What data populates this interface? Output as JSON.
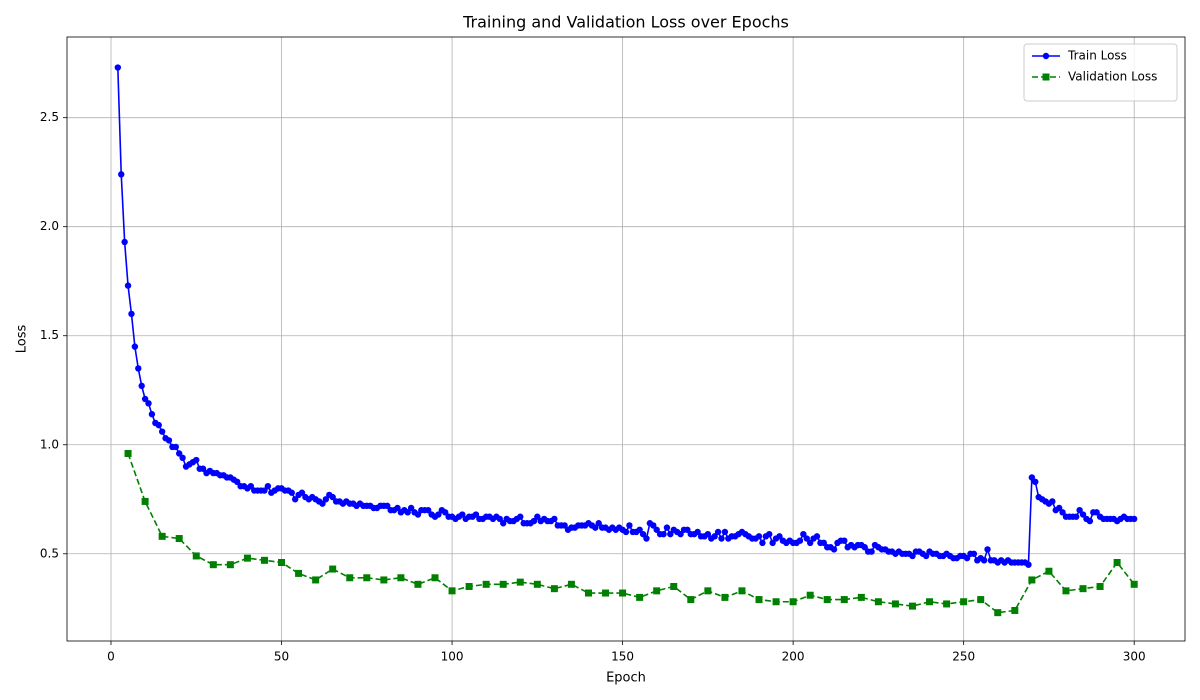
{
  "chart_data": {
    "type": "line",
    "title": "Training and Validation Loss over Epochs",
    "x_label": "Epoch",
    "y_label": "Loss",
    "xlim": [
      -12.9,
      314.9
    ],
    "ylim": [
      0.1,
      2.87
    ],
    "xticks": [
      0,
      50,
      100,
      150,
      200,
      250,
      300
    ],
    "yticks": [
      0.5,
      {
        "value": 1,
        "label": "1.0"
      },
      1.5,
      {
        "value": 2,
        "label": "2.0"
      },
      2.5
    ],
    "grid": true,
    "legend": "upper right",
    "series": [
      {
        "name": "Train Loss",
        "color": "#0000ff",
        "marker": "circle",
        "linestyle": "solid",
        "x": [
          2,
          3,
          4,
          5,
          6,
          7,
          8,
          9,
          10,
          11,
          12,
          13,
          14,
          15,
          16,
          17,
          18,
          19,
          20,
          21,
          22,
          23,
          24,
          25,
          26,
          27,
          28,
          29,
          30,
          31,
          32,
          33,
          34,
          35,
          36,
          37,
          38,
          39,
          40,
          41,
          42,
          43,
          44,
          45,
          46,
          47,
          48,
          49,
          50,
          51,
          52,
          53,
          54,
          55,
          56,
          57,
          58,
          59,
          60,
          61,
          62,
          63,
          64,
          65,
          66,
          67,
          68,
          69,
          70,
          71,
          72,
          73,
          74,
          75,
          76,
          77,
          78,
          79,
          80,
          81,
          82,
          83,
          84,
          85,
          86,
          87,
          88,
          89,
          90,
          91,
          92,
          93,
          94,
          95,
          96,
          97,
          98,
          99,
          100,
          101,
          102,
          103,
          104,
          105,
          106,
          107,
          108,
          109,
          110,
          111,
          112,
          113,
          114,
          115,
          116,
          117,
          118,
          119,
          120,
          121,
          122,
          123,
          124,
          125,
          126,
          127,
          128,
          129,
          130,
          131,
          132,
          133,
          134,
          135,
          136,
          137,
          138,
          139,
          140,
          141,
          142,
          143,
          144,
          145,
          146,
          147,
          148,
          149,
          150,
          151,
          152,
          153,
          154,
          155,
          156,
          157,
          158,
          159,
          160,
          161,
          162,
          163,
          164,
          165,
          166,
          167,
          168,
          169,
          170,
          171,
          172,
          173,
          174,
          175,
          176,
          177,
          178,
          179,
          180,
          181,
          182,
          183,
          184,
          185,
          186,
          187,
          188,
          189,
          190,
          191,
          192,
          193,
          194,
          195,
          196,
          197,
          198,
          199,
          200,
          201,
          202,
          203,
          204,
          205,
          206,
          207,
          208,
          209,
          210,
          211,
          212,
          213,
          214,
          215,
          216,
          217,
          218,
          219,
          220,
          221,
          222,
          223,
          224,
          225,
          226,
          227,
          228,
          229,
          230,
          231,
          232,
          233,
          234,
          235,
          236,
          237,
          238,
          239,
          240,
          241,
          242,
          243,
          244,
          245,
          246,
          247,
          248,
          249,
          250,
          251,
          252,
          253,
          254,
          255,
          256,
          257,
          258,
          259,
          260,
          261,
          262,
          263,
          264,
          265,
          266,
          267,
          268,
          269,
          270,
          271,
          272,
          273,
          274,
          275,
          276,
          277,
          278,
          279,
          280,
          281,
          282,
          283,
          284,
          285,
          286,
          287,
          288,
          289,
          290,
          291,
          292,
          293,
          294,
          295,
          296,
          297,
          298,
          299,
          300
        ],
        "values": [
          2.73,
          2.24,
          1.93,
          1.73,
          1.6,
          1.45,
          1.35,
          1.27,
          1.21,
          1.19,
          1.14,
          1.1,
          1.09,
          1.06,
          1.03,
          1.02,
          0.99,
          0.99,
          0.96,
          0.94,
          0.9,
          0.91,
          0.92,
          0.93,
          0.89,
          0.89,
          0.87,
          0.88,
          0.87,
          0.87,
          0.86,
          0.86,
          0.85,
          0.85,
          0.84,
          0.83,
          0.81,
          0.81,
          0.8,
          0.81,
          0.79,
          0.79,
          0.79,
          0.79,
          0.81,
          0.78,
          0.79,
          0.8,
          0.8,
          0.79,
          0.79,
          0.78,
          0.75,
          0.77,
          0.78,
          0.76,
          0.75,
          0.76,
          0.75,
          0.74,
          0.73,
          0.75,
          0.77,
          0.76,
          0.74,
          0.74,
          0.73,
          0.74,
          0.73,
          0.73,
          0.72,
          0.73,
          0.72,
          0.72,
          0.72,
          0.71,
          0.71,
          0.72,
          0.72,
          0.72,
          0.7,
          0.7,
          0.71,
          0.69,
          0.7,
          0.69,
          0.71,
          0.69,
          0.68,
          0.7,
          0.7,
          0.7,
          0.68,
          0.67,
          0.68,
          0.7,
          0.69,
          0.67,
          0.67,
          0.66,
          0.67,
          0.68,
          0.66,
          0.67,
          0.67,
          0.68,
          0.66,
          0.66,
          0.67,
          0.67,
          0.66,
          0.67,
          0.66,
          0.64,
          0.66,
          0.65,
          0.65,
          0.66,
          0.67,
          0.64,
          0.64,
          0.64,
          0.65,
          0.67,
          0.65,
          0.66,
          0.65,
          0.65,
          0.66,
          0.63,
          0.63,
          0.63,
          0.61,
          0.62,
          0.62,
          0.63,
          0.63,
          0.63,
          0.64,
          0.63,
          0.62,
          0.64,
          0.62,
          0.62,
          0.61,
          0.62,
          0.61,
          0.62,
          0.61,
          0.6,
          0.63,
          0.6,
          0.6,
          0.61,
          0.59,
          0.57,
          0.64,
          0.63,
          0.61,
          0.59,
          0.59,
          0.62,
          0.59,
          0.61,
          0.6,
          0.59,
          0.61,
          0.61,
          0.59,
          0.59,
          0.6,
          0.58,
          0.58,
          0.59,
          0.57,
          0.58,
          0.6,
          0.57,
          0.6,
          0.57,
          0.58,
          0.58,
          0.59,
          0.6,
          0.59,
          0.58,
          0.57,
          0.57,
          0.58,
          0.55,
          0.58,
          0.59,
          0.55,
          0.57,
          0.58,
          0.56,
          0.55,
          0.56,
          0.55,
          0.55,
          0.56,
          0.59,
          0.57,
          0.55,
          0.57,
          0.58,
          0.55,
          0.55,
          0.53,
          0.53,
          0.52,
          0.55,
          0.56,
          0.56,
          0.53,
          0.54,
          0.53,
          0.54,
          0.54,
          0.53,
          0.51,
          0.51,
          0.54,
          0.53,
          0.52,
          0.52,
          0.51,
          0.51,
          0.5,
          0.51,
          0.5,
          0.5,
          0.5,
          0.49,
          0.51,
          0.51,
          0.5,
          0.49,
          0.51,
          0.5,
          0.5,
          0.49,
          0.49,
          0.5,
          0.49,
          0.48,
          0.48,
          0.49,
          0.49,
          0.48,
          0.5,
          0.5,
          0.47,
          0.48,
          0.47,
          0.52,
          0.47,
          0.47,
          0.46,
          0.47,
          0.46,
          0.47,
          0.46,
          0.46,
          0.46,
          0.46,
          0.46,
          0.45,
          0.85,
          0.83,
          0.76,
          0.75,
          0.74,
          0.73,
          0.74,
          0.7,
          0.71,
          0.69,
          0.67,
          0.67,
          0.67,
          0.67,
          0.7,
          0.68,
          0.66,
          0.65,
          0.69,
          0.69,
          0.67,
          0.66,
          0.66,
          0.66,
          0.66,
          0.65,
          0.66,
          0.67,
          0.66,
          0.66,
          0.66
        ]
      },
      {
        "name": "Validation Loss",
        "color": "#008000",
        "marker": "square",
        "linestyle": "dashed",
        "x": [
          5,
          10,
          15,
          20,
          25,
          30,
          35,
          40,
          45,
          50,
          55,
          60,
          65,
          70,
          75,
          80,
          85,
          90,
          95,
          100,
          105,
          110,
          115,
          120,
          125,
          130,
          135,
          140,
          145,
          150,
          155,
          160,
          165,
          170,
          175,
          180,
          185,
          190,
          195,
          200,
          205,
          210,
          215,
          220,
          225,
          230,
          235,
          240,
          245,
          250,
          255,
          260,
          265,
          270,
          275,
          280,
          285,
          290,
          295,
          300
        ],
        "values": [
          0.96,
          0.74,
          0.58,
          0.57,
          0.49,
          0.45,
          0.45,
          0.48,
          0.47,
          0.46,
          0.41,
          0.38,
          0.43,
          0.39,
          0.39,
          0.38,
          0.39,
          0.36,
          0.39,
          0.33,
          0.35,
          0.36,
          0.36,
          0.37,
          0.36,
          0.34,
          0.36,
          0.32,
          0.32,
          0.32,
          0.3,
          0.33,
          0.35,
          0.29,
          0.33,
          0.3,
          0.33,
          0.29,
          0.28,
          0.28,
          0.31,
          0.29,
          0.29,
          0.3,
          0.28,
          0.27,
          0.26,
          0.28,
          0.27,
          0.28,
          0.29,
          0.23,
          0.24,
          0.38,
          0.42,
          0.33,
          0.34,
          0.35,
          0.46,
          0.36
        ]
      }
    ]
  }
}
